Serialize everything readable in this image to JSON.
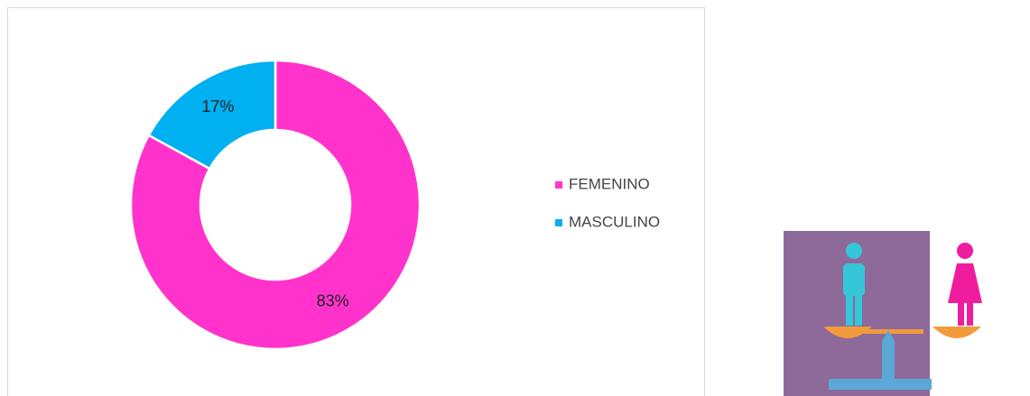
{
  "chart_data": {
    "type": "donut",
    "categories": [
      "FEMENINO",
      "MASCULINO"
    ],
    "values": [
      83,
      17
    ],
    "value_labels": [
      "83%",
      "17%"
    ],
    "colors": [
      "#FF33CC",
      "#00B0F0"
    ],
    "legend": "right"
  }
}
